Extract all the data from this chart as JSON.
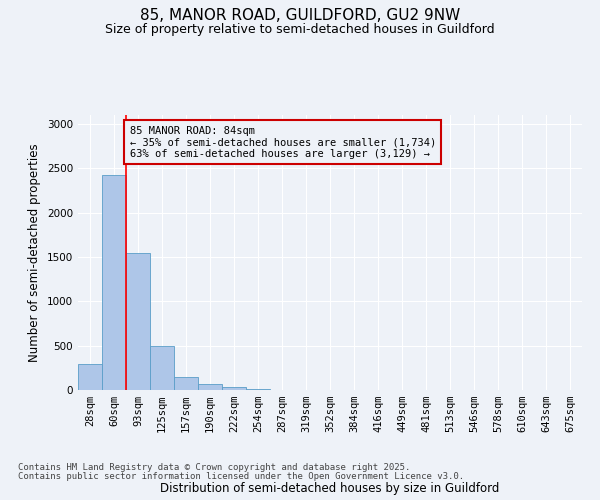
{
  "title": "85, MANOR ROAD, GUILDFORD, GU2 9NW",
  "subtitle": "Size of property relative to semi-detached houses in Guildford",
  "xlabel": "Distribution of semi-detached houses by size in Guildford",
  "ylabel": "Number of semi-detached properties",
  "categories": [
    "28sqm",
    "60sqm",
    "93sqm",
    "125sqm",
    "157sqm",
    "190sqm",
    "222sqm",
    "254sqm",
    "287sqm",
    "319sqm",
    "352sqm",
    "384sqm",
    "416sqm",
    "449sqm",
    "481sqm",
    "513sqm",
    "546sqm",
    "578sqm",
    "610sqm",
    "643sqm",
    "675sqm"
  ],
  "values": [
    295,
    2420,
    1545,
    500,
    150,
    70,
    30,
    10,
    3,
    2,
    1,
    0,
    0,
    0,
    0,
    0,
    0,
    0,
    0,
    0,
    0
  ],
  "bar_color": "#aec6e8",
  "bar_edge_color": "#5a9ec8",
  "property_line_x": 1.5,
  "annotation_text": "85 MANOR ROAD: 84sqm\n← 35% of semi-detached houses are smaller (1,734)\n63% of semi-detached houses are larger (3,129) →",
  "annotation_box_color": "#cc0000",
  "ylim": [
    0,
    3100
  ],
  "yticks": [
    0,
    500,
    1000,
    1500,
    2000,
    2500,
    3000
  ],
  "footer_line1": "Contains HM Land Registry data © Crown copyright and database right 2025.",
  "footer_line2": "Contains public sector information licensed under the Open Government Licence v3.0.",
  "bg_color": "#eef2f8",
  "grid_color": "#ffffff",
  "title_fontsize": 11,
  "subtitle_fontsize": 9,
  "axis_label_fontsize": 8.5,
  "tick_fontsize": 7.5,
  "footer_fontsize": 6.5,
  "annotation_fontsize": 7.5
}
